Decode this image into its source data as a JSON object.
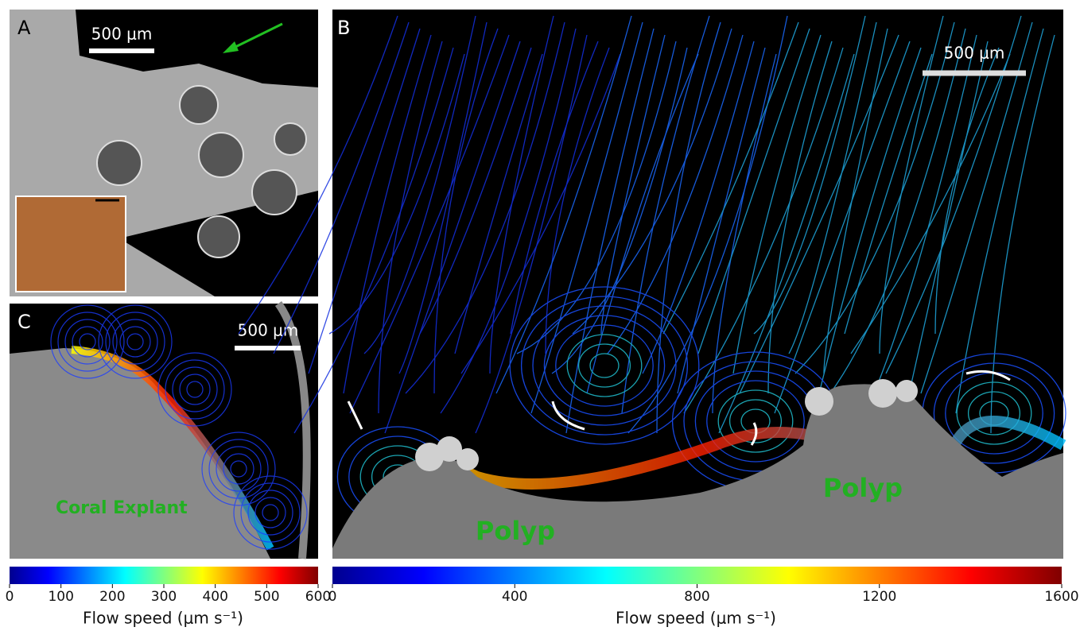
{
  "panels": [
    {
      "label": "A",
      "scale_bar": "500 μm"
    },
    {
      "label": "B",
      "scale_bar": "500 μm",
      "annotations": [
        "Polyp",
        "Polyp"
      ]
    },
    {
      "label": "C",
      "scale_bar": "500 μm",
      "annotations": [
        "Coral Explant"
      ]
    }
  ],
  "colorbars": [
    {
      "lim": [
        0,
        600
      ],
      "ticks": [
        0,
        100,
        200,
        300,
        400,
        500,
        600
      ],
      "label": "Flow speed (μm s⁻¹)"
    },
    {
      "lim": [
        0,
        1600
      ],
      "ticks": [
        0,
        400,
        800,
        1200,
        1600
      ],
      "label": "Flow speed (μm s⁻¹)"
    }
  ]
}
